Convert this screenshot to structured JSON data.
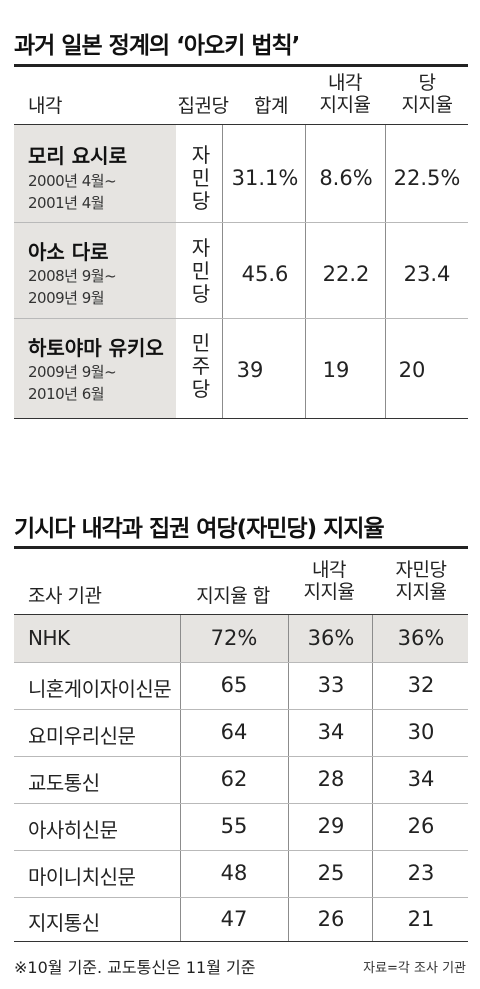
{
  "table1": {
    "title": "과거 일본 정계의 ‘아오키 법칙’",
    "headers": {
      "cabinet": "내각",
      "party": "집권당",
      "total": "합계",
      "cabinet_rate_line1": "내각",
      "cabinet_rate_line2": "지지율",
      "party_rate_line1": "당",
      "party_rate_line2": "지지율"
    },
    "rows": [
      {
        "name": "모리 요시로",
        "period_start": "2000년 4월~",
        "period_end": "2001년 4월",
        "party_chars": [
          "자",
          "민",
          "당"
        ],
        "total": "31.1%",
        "cabinet_rate": "8.6%",
        "party_rate": "22.5%"
      },
      {
        "name": "아소 다로",
        "period_start": "2008년 9월~",
        "period_end": "2009년 9월",
        "party_chars": [
          "자",
          "민",
          "당"
        ],
        "total": "45.6",
        "cabinet_rate": "22.2",
        "party_rate": "23.4"
      },
      {
        "name": "하토야마 유키오",
        "period_start": "2009년 9월~",
        "period_end": "2010년 6월",
        "party_chars": [
          "민",
          "주",
          "당"
        ],
        "total": "39",
        "cabinet_rate": "19",
        "party_rate": "20"
      }
    ]
  },
  "table2": {
    "title": "기시다 내각과 집권 여당(자민당) 지지율",
    "headers": {
      "agency": "조사 기관",
      "total": "지지율 합",
      "cabinet_line1": "내각",
      "cabinet_line2": "지지율",
      "ldp_line1": "자민당",
      "ldp_line2": "지지율"
    },
    "rows": [
      {
        "agency": "NHK",
        "total": "72%",
        "cabinet": "36%",
        "ldp": "36%"
      },
      {
        "agency": "니혼게이자이신문",
        "total": "65",
        "cabinet": "33",
        "ldp": "32"
      },
      {
        "agency": "요미우리신문",
        "total": "64",
        "cabinet": "34",
        "ldp": "30"
      },
      {
        "agency": "교도통신",
        "total": "62",
        "cabinet": "28",
        "ldp": "34"
      },
      {
        "agency": "아사히신문",
        "total": "55",
        "cabinet": "29",
        "ldp": "26"
      },
      {
        "agency": "마이니치신문",
        "total": "48",
        "cabinet": "25",
        "ldp": "23"
      },
      {
        "agency": "지지통신",
        "total": "47",
        "cabinet": "26",
        "ldp": "21"
      }
    ],
    "footnote": "※10월 기준. 교도통신은 11월 기준",
    "source": "자료=각 조사 기관"
  }
}
